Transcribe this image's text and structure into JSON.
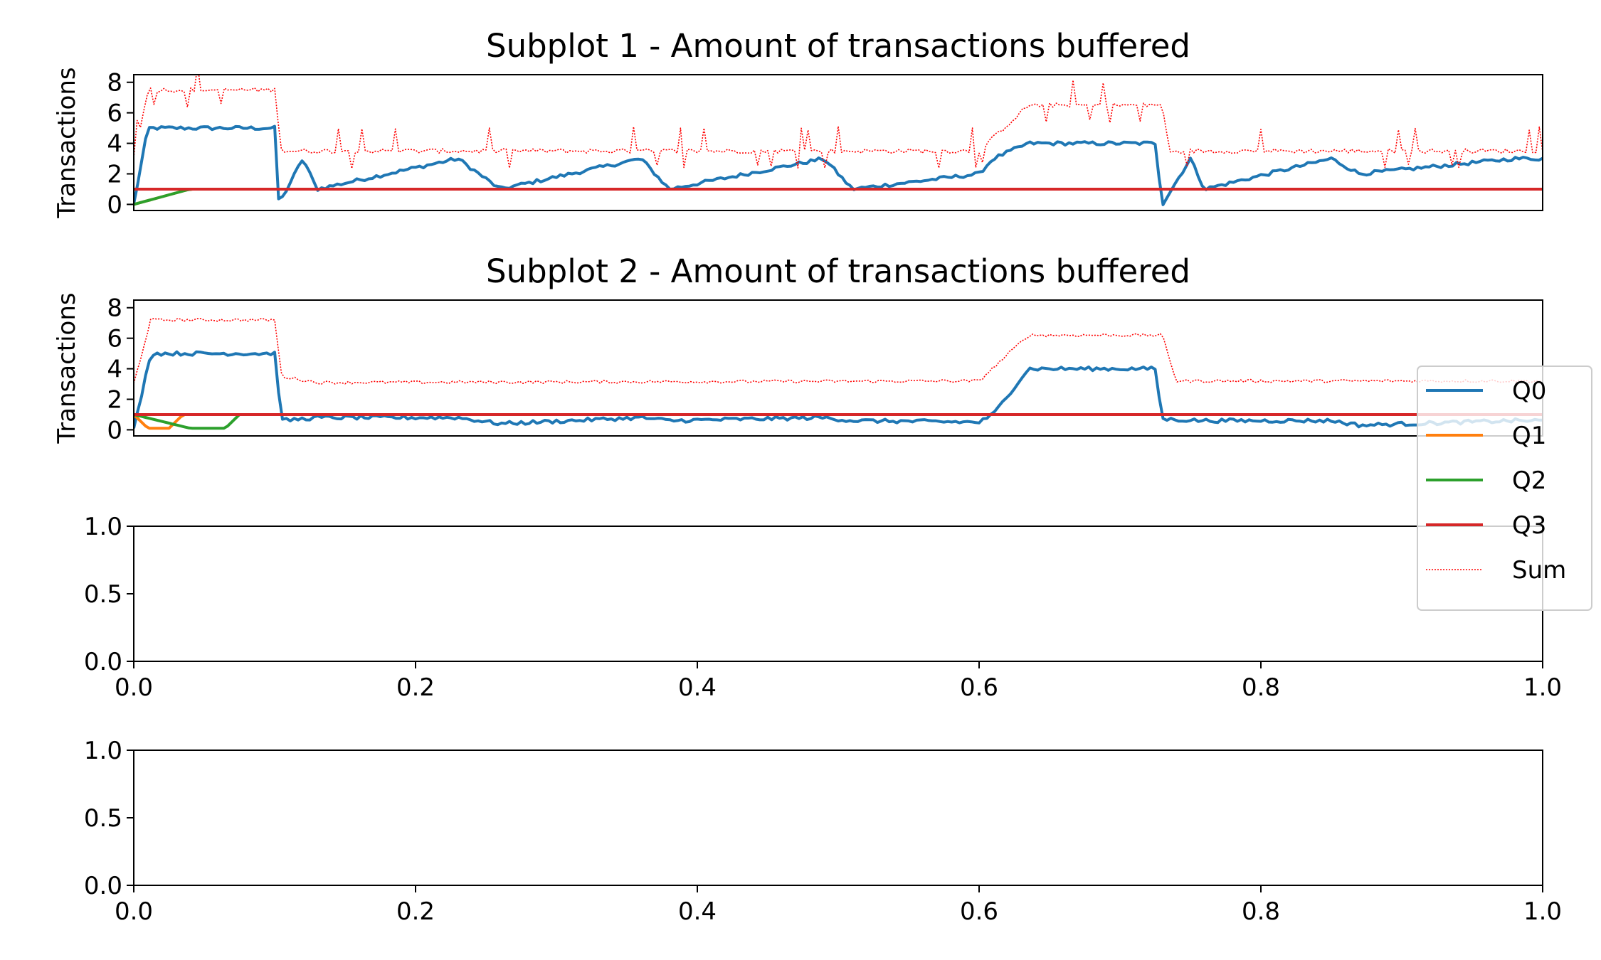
{
  "chart_data": [
    {
      "type": "line",
      "title": "Subplot 1 - Amount of transactions buffered",
      "xlabel": "",
      "ylabel": "Transactions",
      "xlim": [
        0,
        1
      ],
      "ylim": [
        -0.4,
        8.5
      ],
      "yticks": [
        "0",
        "2",
        "4",
        "6",
        "8"
      ],
      "grid": false,
      "legend": "none",
      "series": [
        {
          "name": "Q0",
          "color": "#1f77b4",
          "style": "solid",
          "approx_points": [
            [
              0.0,
              0
            ],
            [
              0.01,
              5
            ],
            [
              0.1,
              5
            ],
            [
              0.103,
              0
            ],
            [
              0.12,
              3
            ],
            [
              0.13,
              1
            ],
            [
              0.23,
              3
            ],
            [
              0.26,
              1
            ],
            [
              0.36,
              3
            ],
            [
              0.38,
              1
            ],
            [
              0.49,
              3
            ],
            [
              0.51,
              1
            ],
            [
              0.6,
              2
            ],
            [
              0.61,
              3
            ],
            [
              0.635,
              4
            ],
            [
              0.725,
              4
            ],
            [
              0.73,
              0
            ],
            [
              0.75,
              3
            ],
            [
              0.76,
              1
            ],
            [
              0.85,
              3
            ],
            [
              0.87,
              2
            ],
            [
              0.98,
              3
            ],
            [
              1.0,
              3
            ]
          ]
        },
        {
          "name": "Q1",
          "color": "#ff7f0e",
          "style": "solid",
          "approx_points": [
            [
              0.0,
              0
            ],
            [
              0.04,
              1
            ],
            [
              1.0,
              1
            ]
          ]
        },
        {
          "name": "Q2",
          "color": "#2ca02c",
          "style": "solid",
          "approx_points": [
            [
              0.0,
              0
            ],
            [
              0.04,
              1
            ],
            [
              1.0,
              1
            ]
          ]
        },
        {
          "name": "Q3",
          "color": "#d62728",
          "style": "solid",
          "approx_points": [
            [
              0.0,
              1
            ],
            [
              1.0,
              1
            ]
          ]
        },
        {
          "name": "Sum",
          "color": "#ff0000",
          "style": "dotted",
          "approx_points": [
            [
              0.0,
              3
            ],
            [
              0.01,
              7.5
            ],
            [
              0.1,
              7.5
            ],
            [
              0.105,
              3.5
            ],
            [
              0.6,
              3.5
            ],
            [
              0.635,
              6.5
            ],
            [
              0.73,
              6.5
            ],
            [
              0.735,
              3.5
            ],
            [
              1.0,
              3.5
            ]
          ]
        }
      ]
    },
    {
      "type": "line",
      "title": "Subplot 2 - Amount of transactions buffered",
      "xlabel": "",
      "ylabel": "Transactions",
      "xlim": [
        0,
        1
      ],
      "ylim": [
        -0.4,
        8.5
      ],
      "yticks": [
        "0",
        "2",
        "4",
        "6",
        "8"
      ],
      "grid": false,
      "legend": "right, outside the axes",
      "series": [
        {
          "name": "Q0",
          "color": "#1f77b4",
          "style": "solid",
          "approx_points": [
            [
              0.0,
              0
            ],
            [
              0.012,
              5
            ],
            [
              0.1,
              5
            ],
            [
              0.105,
              0.6
            ],
            [
              0.13,
              0.8
            ],
            [
              0.23,
              0.8
            ],
            [
              0.26,
              0.4
            ],
            [
              0.36,
              0.8
            ],
            [
              0.38,
              0.6
            ],
            [
              0.49,
              0.8
            ],
            [
              0.51,
              0.6
            ],
            [
              0.6,
              0.5
            ],
            [
              0.61,
              1
            ],
            [
              0.635,
              4
            ],
            [
              0.725,
              4
            ],
            [
              0.73,
              0.7
            ],
            [
              0.76,
              0.6
            ],
            [
              0.85,
              0.6
            ],
            [
              0.87,
              0.3
            ],
            [
              0.98,
              0.6
            ],
            [
              1.0,
              0.6
            ]
          ]
        },
        {
          "name": "Q1",
          "color": "#ff7f0e",
          "style": "solid",
          "approx_points": [
            [
              0.0,
              1
            ],
            [
              0.01,
              0.1
            ],
            [
              0.025,
              0.1
            ],
            [
              0.035,
              1
            ],
            [
              1.0,
              1
            ]
          ]
        },
        {
          "name": "Q2",
          "color": "#2ca02c",
          "style": "solid",
          "approx_points": [
            [
              0.0,
              1
            ],
            [
              0.04,
              0.1
            ],
            [
              0.065,
              0.1
            ],
            [
              0.075,
              1
            ],
            [
              1.0,
              1
            ]
          ]
        },
        {
          "name": "Q3",
          "color": "#d62728",
          "style": "solid",
          "approx_points": [
            [
              0.0,
              1
            ],
            [
              1.0,
              1
            ]
          ]
        },
        {
          "name": "Sum",
          "color": "#ff0000",
          "style": "dotted",
          "approx_points": [
            [
              0.0,
              3
            ],
            [
              0.012,
              7.2
            ],
            [
              0.1,
              7.2
            ],
            [
              0.105,
              3.5
            ],
            [
              0.13,
              3.1
            ],
            [
              0.6,
              3.2
            ],
            [
              0.635,
              6.2
            ],
            [
              0.73,
              6.2
            ],
            [
              0.74,
              3.2
            ],
            [
              1.0,
              3.2
            ]
          ]
        }
      ]
    },
    {
      "type": "line",
      "title": "",
      "xlim": [
        0,
        1
      ],
      "ylim": [
        0,
        1
      ],
      "xticks": [
        "0.0",
        "0.2",
        "0.4",
        "0.6",
        "0.8",
        "1.0"
      ],
      "yticks": [
        "0.0",
        "0.5",
        "1.0"
      ],
      "series": []
    },
    {
      "type": "line",
      "title": "",
      "xlim": [
        0,
        1
      ],
      "ylim": [
        0,
        1
      ],
      "xticks": [
        "0.0",
        "0.2",
        "0.4",
        "0.6",
        "0.8",
        "1.0"
      ],
      "yticks": [
        "0.0",
        "0.5",
        "1.0"
      ],
      "series": []
    }
  ]
}
